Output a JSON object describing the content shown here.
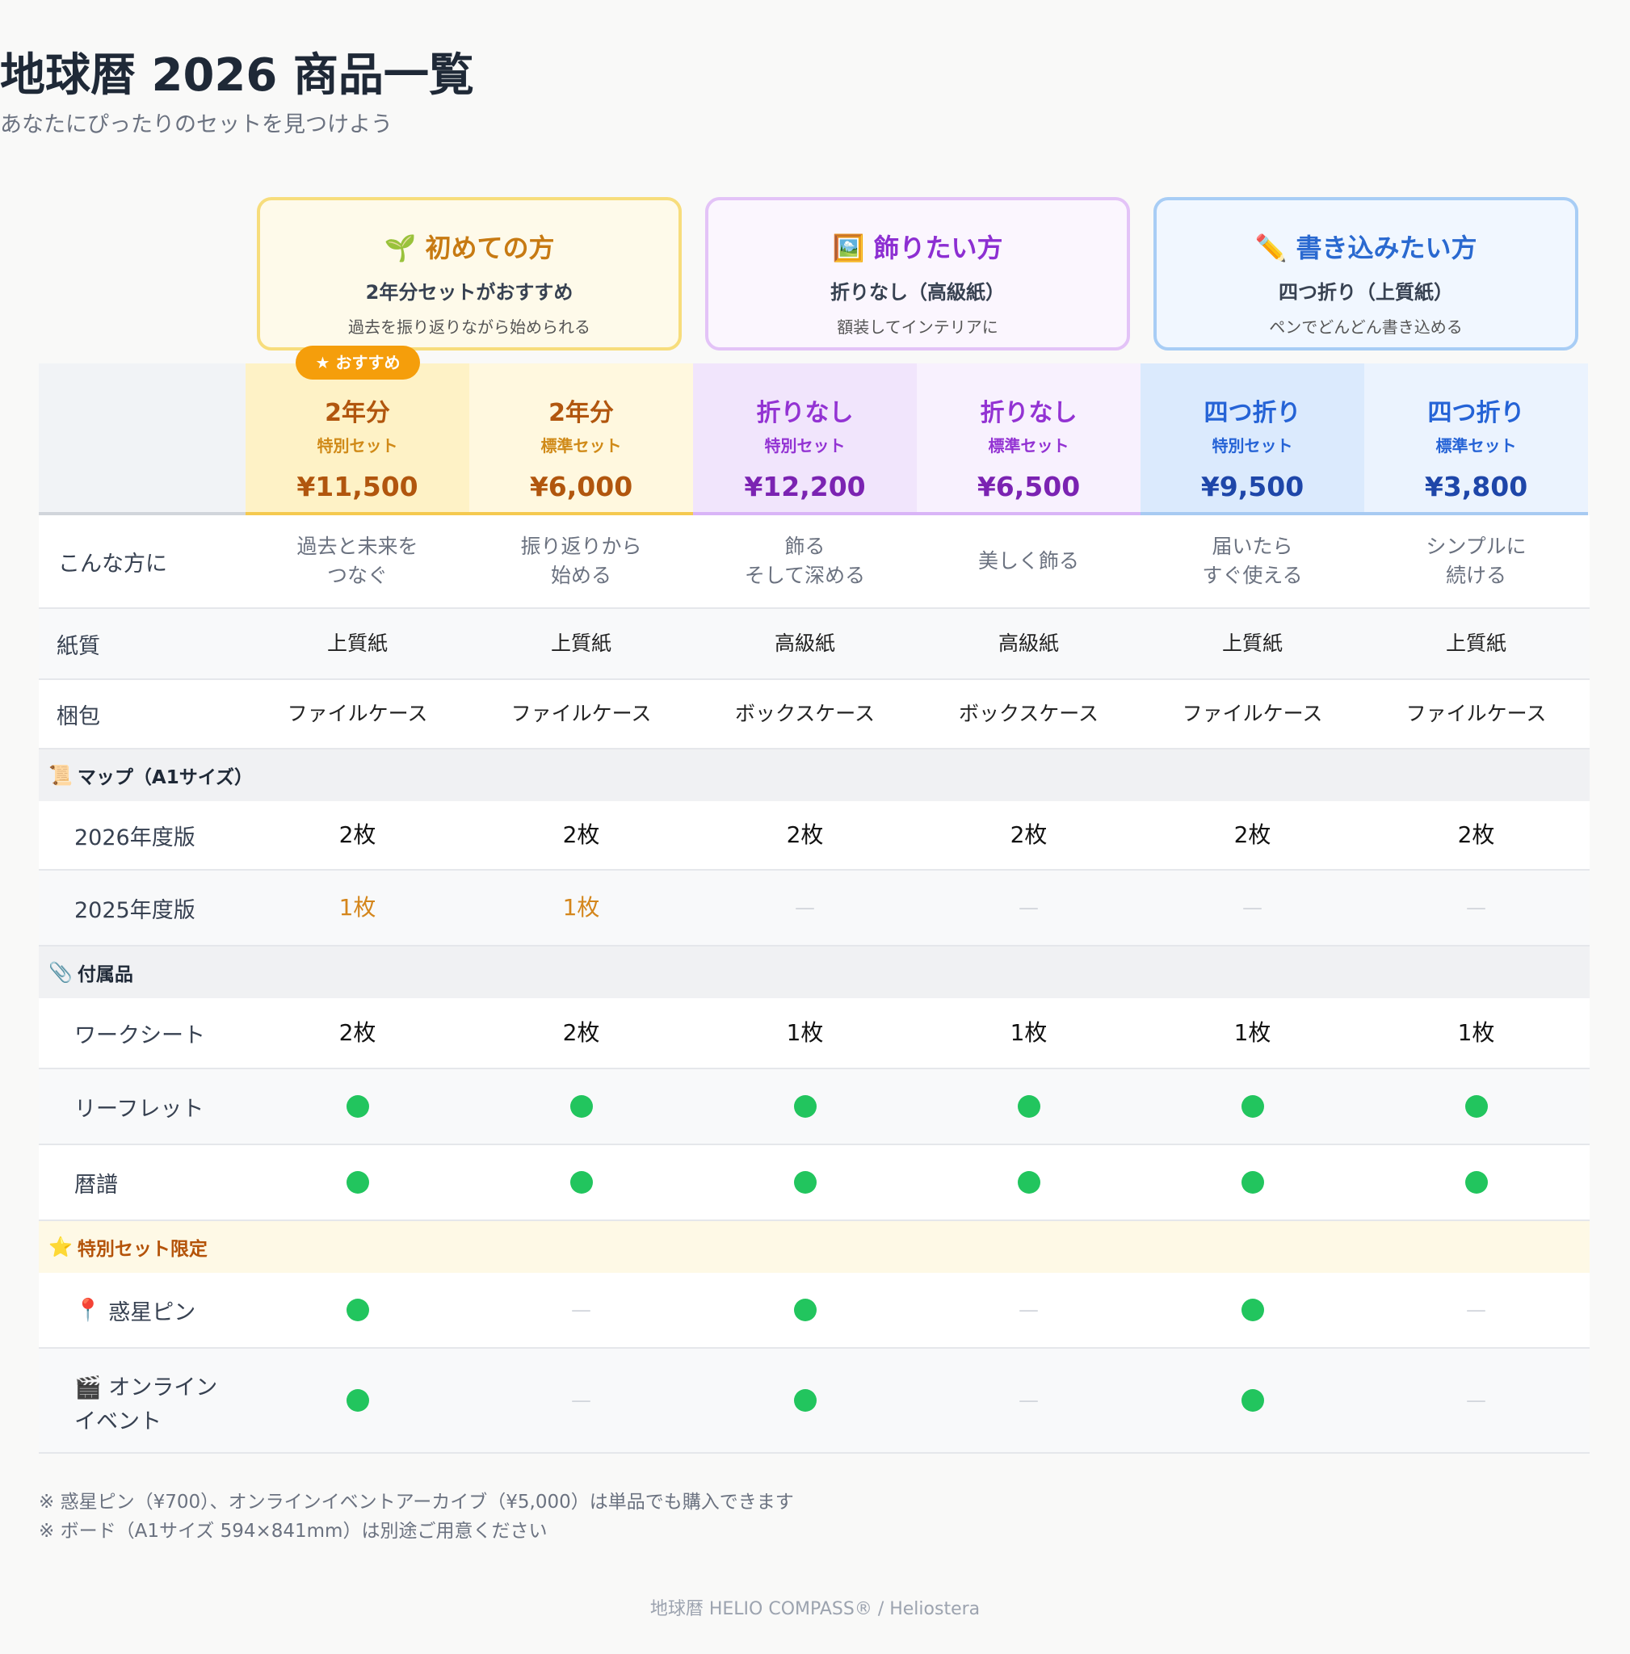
{
  "header": {
    "title": "地球暦 2026 商品一覧",
    "subtitle": "あなたにぴったりのセットを見つけよう"
  },
  "personas": [
    {
      "icon": "🌱",
      "title": "初めての方",
      "sub": "2年分セットがおすすめ",
      "desc": "過去を振り返りながら始められる",
      "color": "#c77a12"
    },
    {
      "icon": "🖼️",
      "title": "飾りたい方",
      "sub": "折りなし（高級紙）",
      "desc": "額装してインテリアに",
      "color": "#8d2fd2"
    },
    {
      "icon": "✏️",
      "title": "書き込みたい方",
      "sub": "四つ折り（上質紙）",
      "desc": "ペンでどんどん書き込める",
      "color": "#2a69d0"
    }
  ],
  "badge": "★ おすすめ",
  "plans": [
    {
      "name": "2年分",
      "type": "特別セット",
      "price": "¥11,500"
    },
    {
      "name": "2年分",
      "type": "標準セット",
      "price": "¥6,000"
    },
    {
      "name": "折りなし",
      "type": "特別セット",
      "price": "¥12,200"
    },
    {
      "name": "折りなし",
      "type": "標準セット",
      "price": "¥6,500"
    },
    {
      "name": "四つ折り",
      "type": "特別セット",
      "price": "¥9,500"
    },
    {
      "name": "四つ折り",
      "type": "標準セット",
      "price": "¥3,800"
    }
  ],
  "rows": {
    "target": {
      "label": "こんな方に",
      "cells": [
        "過去と未来を\nつなぐ",
        "振り返りから\n始める",
        "飾る\nそして深める",
        "美しく飾る",
        "届いたら\nすぐ使える",
        "シンプルに\n続ける"
      ]
    },
    "paper": {
      "label": "紙質",
      "cells": [
        "上質紙",
        "上質紙",
        "高級紙",
        "高級紙",
        "上質紙",
        "上質紙"
      ]
    },
    "packaging": {
      "label": "梱包",
      "cells": [
        "ファイルケース",
        "ファイルケース",
        "ボックスケース",
        "ボックスケース",
        "ファイルケース",
        "ファイルケース"
      ]
    }
  },
  "sections": {
    "map": {
      "icon": "📜",
      "label": "マップ（A1サイズ）"
    },
    "accessories": {
      "icon": "📎",
      "label": "付属品"
    },
    "special": {
      "icon": "⭐",
      "label": "特別セット限定"
    }
  },
  "map_rows": [
    {
      "label": "2026年度版",
      "cells": [
        "2枚",
        "2枚",
        "2枚",
        "2枚",
        "2枚",
        "2枚"
      ]
    },
    {
      "label": "2025年度版",
      "cells": [
        "1枚",
        "1枚",
        "—",
        "—",
        "—",
        "—"
      ]
    }
  ],
  "accessory_rows": {
    "worksheet": {
      "label": "ワークシート",
      "cells": [
        "2枚",
        "2枚",
        "1枚",
        "1枚",
        "1枚",
        "1枚"
      ]
    },
    "leaflet": {
      "label": "リーフレット",
      "included": [
        true,
        true,
        true,
        true,
        true,
        true
      ]
    },
    "calendar_notes": {
      "label": "暦譜",
      "included": [
        true,
        true,
        true,
        true,
        true,
        true
      ]
    }
  },
  "special_rows": {
    "planet_pin": {
      "icon": "📍",
      "label": "惑星ピン",
      "included": [
        true,
        false,
        true,
        false,
        true,
        false
      ]
    },
    "online_event": {
      "icon": "🎬",
      "label": "オンライン\nイベント",
      "included": [
        true,
        false,
        true,
        false,
        true,
        false
      ]
    }
  },
  "dash": "—",
  "notes": [
    "※ 惑星ピン（¥700）、オンラインイベントアーカイブ（¥5,000）は単品でも購入できます",
    "※ ボード（A1サイズ 594×841mm）は別途ご用意ください"
  ],
  "footer": "地球暦 HELIO COMPASS® / Heliostera",
  "colors": {
    "yellow_accent": "#c77a12",
    "purple_accent": "#8d2fd2",
    "blue_accent": "#2a69d0",
    "check_green": "#22c55e"
  }
}
